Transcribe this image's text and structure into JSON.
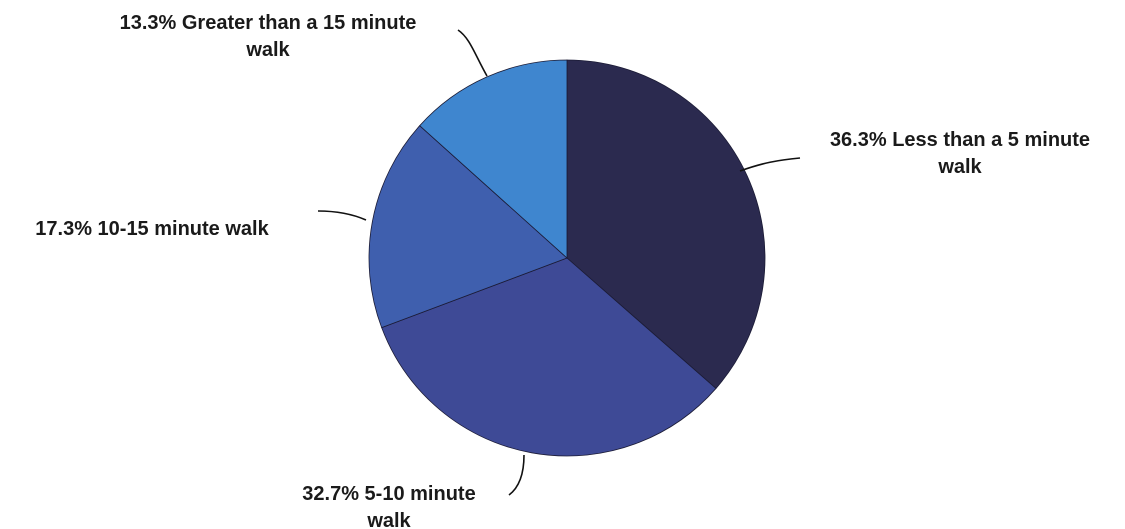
{
  "chart_data": {
    "type": "pie",
    "title": "",
    "slices": [
      {
        "label_lines": [
          "36.3% Less than a 5 minute",
          "walk"
        ],
        "value": 36.3,
        "color": "#2b2a4f"
      },
      {
        "label_lines": [
          "32.7% 5-10 minute",
          "walk"
        ],
        "value": 32.7,
        "color": "#3e4a96"
      },
      {
        "label_lines": [
          "17.3% 10-15 minute walk"
        ],
        "value": 17.3,
        "color": "#3f5fae"
      },
      {
        "label_lines": [
          "13.3% Greater than a 15 minute",
          "walk"
        ],
        "value": 13.3,
        "color": "#3f86cf"
      }
    ],
    "start": "12 o'clock",
    "direction": "clockwise"
  }
}
